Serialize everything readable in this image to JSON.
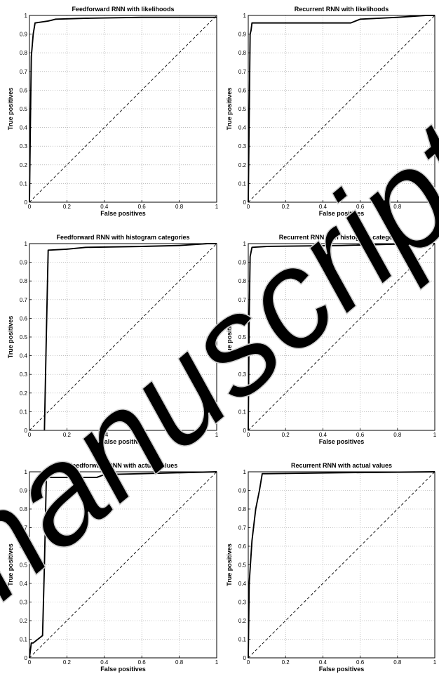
{
  "chart_data": [
    {
      "type": "line",
      "title": "Feedforward RNN with likelihoods",
      "xlabel": "False positives",
      "ylabel": "True positives",
      "xlim": [
        0,
        1
      ],
      "ylim": [
        0,
        1
      ],
      "xticks": [
        0,
        0.2,
        0.4,
        0.6,
        0.8,
        1
      ],
      "yticks": [
        0,
        0.1,
        0.2,
        0.3,
        0.4,
        0.5,
        0.6,
        0.7,
        0.8,
        0.9,
        1
      ],
      "grid": true,
      "series": [
        {
          "style": "solid",
          "x": [
            0,
            0.005,
            0.01,
            0.02,
            0.03,
            0.1,
            0.12,
            0.14,
            0.3,
            0.6,
            1.0
          ],
          "y": [
            0,
            0.42,
            0.78,
            0.9,
            0.96,
            0.97,
            0.975,
            0.98,
            0.985,
            0.99,
            0.99
          ]
        },
        {
          "style": "dashed",
          "x": [
            0,
            1
          ],
          "y": [
            0,
            1
          ]
        }
      ]
    },
    {
      "type": "line",
      "title": "Recurrent RNN with likelihoods",
      "xlabel": "False positives",
      "ylabel": "True positives",
      "xlim": [
        0,
        1
      ],
      "ylim": [
        0,
        1
      ],
      "xticks": [
        0,
        0.2,
        0.4,
        0.6,
        0.8,
        1
      ],
      "yticks": [
        0,
        0.1,
        0.2,
        0.3,
        0.4,
        0.5,
        0.6,
        0.7,
        0.8,
        0.9,
        1
      ],
      "grid": true,
      "series": [
        {
          "style": "solid",
          "x": [
            0,
            0.01,
            0.015,
            0.02,
            0.55,
            0.6,
            0.8,
            0.95,
            1.0
          ],
          "y": [
            0,
            0.9,
            0.92,
            0.96,
            0.96,
            0.98,
            0.99,
            1.0,
            1.0
          ]
        },
        {
          "style": "dashed",
          "x": [
            0,
            1
          ],
          "y": [
            0,
            1
          ]
        }
      ]
    },
    {
      "type": "line",
      "title": "Feedforward RNN with histogram categories",
      "xlabel": "False positives",
      "ylabel": "True positives",
      "xlim": [
        0,
        1
      ],
      "ylim": [
        0,
        1
      ],
      "xticks": [
        0,
        0.2,
        0.4,
        0.6,
        0.8,
        1
      ],
      "yticks": [
        0,
        0.1,
        0.2,
        0.3,
        0.4,
        0.5,
        0.6,
        0.7,
        0.8,
        0.9,
        1
      ],
      "grid": true,
      "series": [
        {
          "style": "solid",
          "x": [
            0.08,
            0.09,
            0.1,
            0.2,
            0.3,
            0.6,
            0.8,
            0.95,
            1.0
          ],
          "y": [
            0,
            0.5,
            0.965,
            0.97,
            0.98,
            0.985,
            0.99,
            1.0,
            1.0
          ]
        },
        {
          "style": "dashed",
          "x": [
            0,
            1
          ],
          "y": [
            0,
            1
          ]
        }
      ]
    },
    {
      "type": "line",
      "title": "Recurrent RNN with histogram categories",
      "xlabel": "False positives",
      "ylabel": "True positives",
      "xlim": [
        0,
        1
      ],
      "ylim": [
        0,
        1
      ],
      "xticks": [
        0,
        0.2,
        0.4,
        0.6,
        0.8,
        1
      ],
      "yticks": [
        0,
        0.1,
        0.2,
        0.3,
        0.4,
        0.5,
        0.6,
        0.7,
        0.8,
        0.9,
        1
      ],
      "grid": true,
      "series": [
        {
          "style": "solid",
          "x": [
            0,
            0.005,
            0.01,
            0.02,
            0.1,
            0.5,
            0.9,
            1.0
          ],
          "y": [
            0,
            0.6,
            0.93,
            0.98,
            0.985,
            0.99,
            1.0,
            1.0
          ]
        },
        {
          "style": "dashed",
          "x": [
            0,
            1
          ],
          "y": [
            0,
            1
          ]
        }
      ]
    },
    {
      "type": "line",
      "title": "Feedforward RNN with actual values",
      "xlabel": "False positives",
      "ylabel": "True positives",
      "xlim": [
        0,
        1
      ],
      "ylim": [
        0,
        1
      ],
      "xticks": [
        0,
        0.2,
        0.4,
        0.6,
        0.8,
        1
      ],
      "yticks": [
        0,
        0.1,
        0.2,
        0.3,
        0.4,
        0.5,
        0.6,
        0.7,
        0.8,
        0.9,
        1
      ],
      "grid": true,
      "series": [
        {
          "style": "solid",
          "x": [
            0,
            0.01,
            0.02,
            0.07,
            0.08,
            0.09,
            0.1,
            0.36,
            0.4,
            0.6,
            1.0
          ],
          "y": [
            0,
            0.08,
            0.08,
            0.12,
            0.5,
            0.96,
            0.97,
            0.97,
            0.985,
            0.99,
            1.0
          ]
        },
        {
          "style": "dashed",
          "x": [
            0,
            1
          ],
          "y": [
            0,
            1
          ]
        }
      ]
    },
    {
      "type": "line",
      "title": "Recurrent RNN with actual values",
      "xlabel": "False positives",
      "ylabel": "True positives",
      "xlim": [
        0,
        1
      ],
      "ylim": [
        0,
        1
      ],
      "xticks": [
        0,
        0.2,
        0.4,
        0.6,
        0.8,
        1
      ],
      "yticks": [
        0,
        0.1,
        0.2,
        0.3,
        0.4,
        0.5,
        0.6,
        0.7,
        0.8,
        0.9,
        1
      ],
      "grid": true,
      "series": [
        {
          "style": "solid",
          "x": [
            0,
            0.005,
            0.02,
            0.04,
            0.06,
            0.075,
            0.1,
            0.5,
            1.0
          ],
          "y": [
            0,
            0.4,
            0.63,
            0.8,
            0.9,
            0.99,
            0.99,
            0.995,
            1.0
          ]
        },
        {
          "style": "dashed",
          "x": [
            0,
            1
          ],
          "y": [
            0,
            1
          ]
        }
      ]
    }
  ],
  "watermark": "manuscript"
}
